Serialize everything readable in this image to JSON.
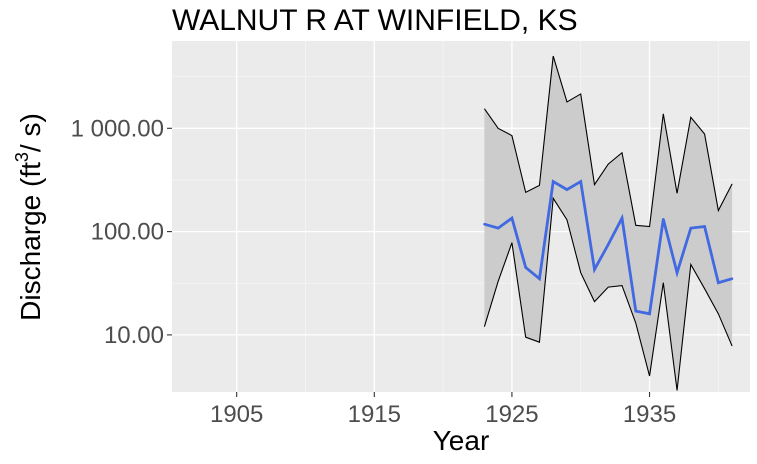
{
  "chart_data": {
    "type": "line",
    "title": "WALNUT R AT WINFIELD, KS",
    "xlabel": "Year",
    "ylabel_text": "Discharge (ft",
    "ylabel_sup": "3",
    "ylabel_tail": "/ s)",
    "x_ticks": [
      "1905",
      "1915",
      "1925",
      "1935"
    ],
    "y_ticks": [
      "10.00",
      "100.00",
      "1 000.00"
    ],
    "y_scale": "log10",
    "xlim": [
      1900.3,
      1942.3
    ],
    "ylim": [
      2.8,
      7000
    ],
    "grid": true,
    "band_color": "#cccccc",
    "line_color": "#4169e1",
    "x": [
      1923,
      1924,
      1925,
      1926,
      1927,
      1928,
      1929,
      1930,
      1931,
      1932,
      1933,
      1934,
      1935,
      1936,
      1937,
      1938,
      1939,
      1940,
      1941
    ],
    "series": [
      {
        "role": "median",
        "values": [
          118,
          108,
          135,
          45,
          35,
          305,
          255,
          305,
          43,
          75,
          135,
          17,
          16,
          132,
          40,
          108,
          112,
          32,
          35
        ]
      },
      {
        "role": "upper",
        "values": [
          1550,
          1000,
          850,
          240,
          280,
          5000,
          1800,
          2150,
          285,
          450,
          580,
          115,
          112,
          1380,
          235,
          1280,
          880,
          160,
          290
        ]
      },
      {
        "role": "lower",
        "values": [
          12,
          33,
          78,
          9.5,
          8.5,
          210,
          130,
          40,
          21,
          29,
          30,
          13,
          4,
          32,
          2.9,
          48,
          28,
          16,
          7.8
        ]
      }
    ]
  }
}
